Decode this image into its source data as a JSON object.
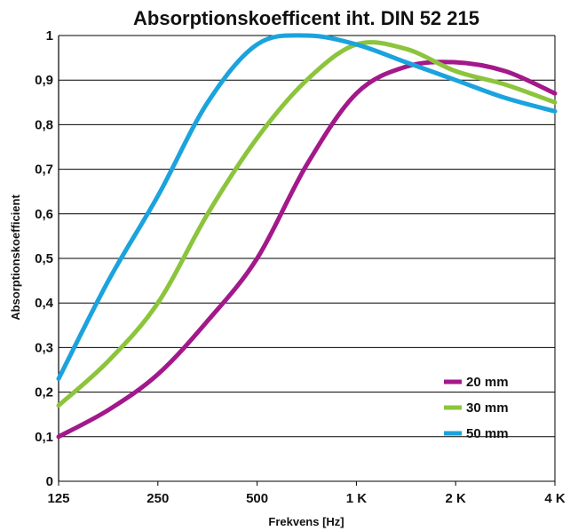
{
  "chart_data": {
    "type": "line",
    "title": "Absorptionskoefficent iht. DIN 52 215",
    "xlabel": "Frekvens [Hz]",
    "ylabel": "Absorptionskoefficient",
    "x_scale": "log2",
    "x_ticks": [
      125,
      250,
      500,
      1000,
      2000,
      4000
    ],
    "x_tick_labels": [
      "125",
      "250",
      "500",
      "1 K",
      "2 K",
      "4 K"
    ],
    "y_ticks": [
      0,
      0.1,
      0.2,
      0.3,
      0.4,
      0.5,
      0.6,
      0.7,
      0.8,
      0.9,
      1
    ],
    "y_tick_labels": [
      "0",
      "0,1",
      "0,2",
      "0,3",
      "0,4",
      "0,5",
      "0,6",
      "0,7",
      "0,8",
      "0,9",
      "1"
    ],
    "ylim": [
      0,
      1
    ],
    "grid": "horizontal",
    "legend_position": "bottom-right",
    "series": [
      {
        "name": "20 mm",
        "color": "#a3188a",
        "x": [
          125,
          177,
          250,
          354,
          500,
          707,
          1000,
          1414,
          2000,
          2828,
          4000
        ],
        "y": [
          0.1,
          0.16,
          0.24,
          0.36,
          0.5,
          0.71,
          0.87,
          0.93,
          0.94,
          0.92,
          0.87
        ]
      },
      {
        "name": "30 mm",
        "color": "#8cc43c",
        "x": [
          125,
          177,
          250,
          354,
          500,
          707,
          1000,
          1414,
          2000,
          2828,
          4000
        ],
        "y": [
          0.17,
          0.27,
          0.4,
          0.6,
          0.77,
          0.9,
          0.98,
          0.97,
          0.92,
          0.89,
          0.85
        ]
      },
      {
        "name": "50 mm",
        "color": "#1ba3dd",
        "x": [
          125,
          177,
          250,
          354,
          500,
          707,
          1000,
          1414,
          2000,
          2828,
          4000
        ],
        "y": [
          0.23,
          0.45,
          0.64,
          0.85,
          0.98,
          1.0,
          0.98,
          0.94,
          0.9,
          0.86,
          0.83
        ]
      }
    ]
  }
}
